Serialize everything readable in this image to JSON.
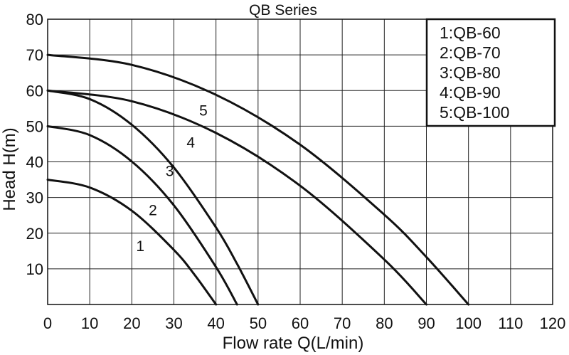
{
  "chart_data": {
    "type": "line",
    "title": "QB Series",
    "xlabel": "Flow rate Q(L/min)",
    "ylabel": "Head H(m)",
    "xlim": [
      0,
      120
    ],
    "ylim": [
      0,
      80
    ],
    "xticks": [
      0,
      10,
      20,
      30,
      40,
      50,
      60,
      70,
      80,
      90,
      100,
      110,
      120
    ],
    "yticks": [
      10,
      20,
      30,
      40,
      50,
      60,
      70,
      80
    ],
    "grid": true,
    "legend_position": "top-right",
    "legend": [
      "1:QB-60",
      "2:QB-70",
      "3:QB-80",
      "4:QB-90",
      "5:QB-100"
    ],
    "series": [
      {
        "name": "1",
        "x": [
          0,
          10,
          20,
          30,
          35,
          40
        ],
        "y": [
          35,
          32.8,
          26.3,
          15.3,
          8.2,
          0
        ]
      },
      {
        "name": "2",
        "x": [
          0,
          10,
          20,
          30,
          40,
          45
        ],
        "y": [
          50,
          47.5,
          40.1,
          27.8,
          10.5,
          0
        ]
      },
      {
        "name": "3",
        "x": [
          0,
          10,
          20,
          30,
          40,
          45,
          50
        ],
        "y": [
          60,
          57.6,
          50.4,
          38.4,
          21.6,
          11.4,
          0
        ]
      },
      {
        "name": "4",
        "x": [
          0,
          20,
          40,
          60,
          80,
          90
        ],
        "y": [
          60,
          57,
          48.1,
          33.3,
          12.6,
          0
        ]
      },
      {
        "name": "5",
        "x": [
          0,
          20,
          40,
          60,
          80,
          90,
          100
        ],
        "y": [
          70,
          67.2,
          58.8,
          44.8,
          25.2,
          13.3,
          0
        ]
      }
    ]
  }
}
